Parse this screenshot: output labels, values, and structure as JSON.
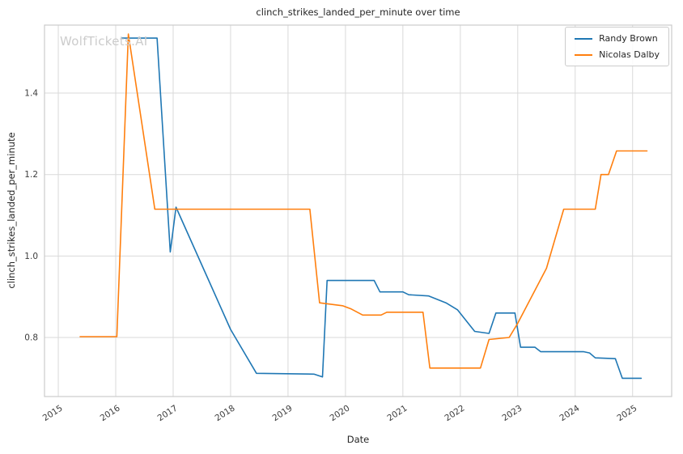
{
  "figure": {
    "title": "clinch_strikes_landed_per_minute over time",
    "watermark": "WolfTickets.AI",
    "xlabel": "Date",
    "ylabel": "clinch_strikes_landed_per_minute"
  },
  "legend": {
    "entries": [
      {
        "label": "Randy Brown",
        "color": "#1f77b4"
      },
      {
        "label": "Nicolas Dalby",
        "color": "#ff7f0e"
      }
    ]
  },
  "chart_data": {
    "type": "line",
    "title": "clinch_strikes_landed_per_minute over time",
    "xlabel": "Date",
    "ylabel": "clinch_strikes_landed_per_minute",
    "xlim": [
      2014.76,
      2025.68
    ],
    "ylim": [
      0.655,
      1.567
    ],
    "x_ticks": [
      2015,
      2016,
      2017,
      2018,
      2019,
      2020,
      2021,
      2022,
      2023,
      2024,
      2025
    ],
    "y_ticks": [
      0.8,
      1.0,
      1.2,
      1.4
    ],
    "grid": true,
    "legend_position": "upper right",
    "series": [
      {
        "name": "Randy Brown",
        "color": "#1f77b4",
        "points": [
          [
            2016.1,
            1.535
          ],
          [
            2016.72,
            1.535
          ],
          [
            2016.95,
            1.01
          ],
          [
            2017.05,
            1.12
          ],
          [
            2018.0,
            0.82
          ],
          [
            2018.45,
            0.712
          ],
          [
            2019.45,
            0.71
          ],
          [
            2019.6,
            0.703
          ],
          [
            2019.68,
            0.94
          ],
          [
            2020.5,
            0.94
          ],
          [
            2020.6,
            0.912
          ],
          [
            2021.0,
            0.912
          ],
          [
            2021.1,
            0.905
          ],
          [
            2021.45,
            0.902
          ],
          [
            2021.75,
            0.885
          ],
          [
            2021.95,
            0.868
          ],
          [
            2022.25,
            0.815
          ],
          [
            2022.5,
            0.81
          ],
          [
            2022.62,
            0.86
          ],
          [
            2022.95,
            0.86
          ],
          [
            2023.05,
            0.776
          ],
          [
            2023.3,
            0.776
          ],
          [
            2023.4,
            0.765
          ],
          [
            2024.15,
            0.765
          ],
          [
            2024.25,
            0.762
          ],
          [
            2024.35,
            0.75
          ],
          [
            2024.7,
            0.748
          ],
          [
            2024.82,
            0.7
          ],
          [
            2025.15,
            0.7
          ]
        ]
      },
      {
        "name": "Nicolas Dalby",
        "color": "#ff7f0e",
        "points": [
          [
            2015.38,
            0.802
          ],
          [
            2016.02,
            0.802
          ],
          [
            2016.22,
            1.545
          ],
          [
            2016.68,
            1.115
          ],
          [
            2019.38,
            1.115
          ],
          [
            2019.55,
            0.885
          ],
          [
            2019.95,
            0.878
          ],
          [
            2020.1,
            0.87
          ],
          [
            2020.3,
            0.855
          ],
          [
            2020.62,
            0.855
          ],
          [
            2020.72,
            0.862
          ],
          [
            2021.35,
            0.862
          ],
          [
            2021.47,
            0.725
          ],
          [
            2022.35,
            0.725
          ],
          [
            2022.5,
            0.795
          ],
          [
            2022.85,
            0.8
          ],
          [
            2023.0,
            0.835
          ],
          [
            2023.5,
            0.97
          ],
          [
            2023.8,
            1.115
          ],
          [
            2024.35,
            1.115
          ],
          [
            2024.45,
            1.2
          ],
          [
            2024.58,
            1.2
          ],
          [
            2024.72,
            1.258
          ],
          [
            2025.25,
            1.258
          ]
        ]
      }
    ]
  }
}
